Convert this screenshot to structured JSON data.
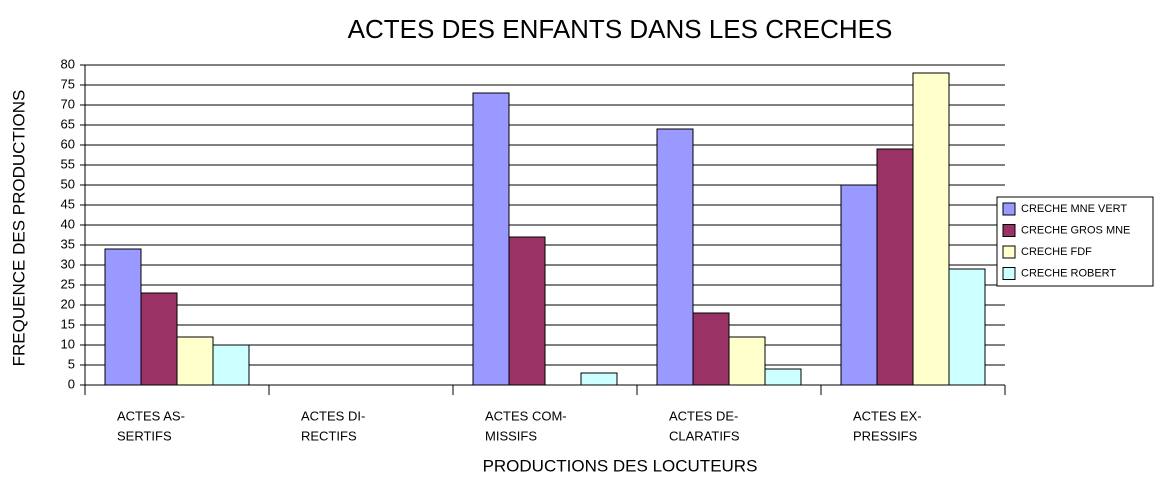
{
  "chart_data": {
    "type": "bar",
    "title": "ACTES DES ENFANTS DANS LES CRECHES",
    "x_label": "PRODUCTIONS DES LOCUTEURS",
    "y_label": "FREQUENCE DES PRODUCTIONS",
    "categories": [
      [
        "ACTES AS-",
        "SERTIFS"
      ],
      [
        "ACTES DI-",
        "RECTIFS"
      ],
      [
        "ACTES COM-",
        "MISSIFS"
      ],
      [
        "ACTES DE-",
        "CLARATIFS"
      ],
      [
        "ACTES EX-",
        "PRESSIFS"
      ]
    ],
    "series": [
      {
        "name": "CRECHE MNE VERT",
        "color": "#9999ff",
        "values": [
          34,
          0,
          73,
          64,
          50
        ]
      },
      {
        "name": "CRECHE GROS MNE",
        "color": "#993366",
        "values": [
          23,
          0,
          37,
          18,
          59
        ]
      },
      {
        "name": "CRECHE FDF",
        "color": "#ffffcc",
        "values": [
          12,
          0,
          0,
          12,
          78
        ]
      },
      {
        "name": "CRECHE ROBERT",
        "color": "#ccffff",
        "values": [
          10,
          0,
          3,
          4,
          29
        ]
      }
    ],
    "ylim": [
      0,
      80
    ],
    "yticks": [
      0,
      5,
      10,
      15,
      20,
      25,
      30,
      35,
      40,
      45,
      50,
      55,
      60,
      65,
      70,
      75,
      80
    ],
    "grid": true,
    "legend": "right"
  }
}
